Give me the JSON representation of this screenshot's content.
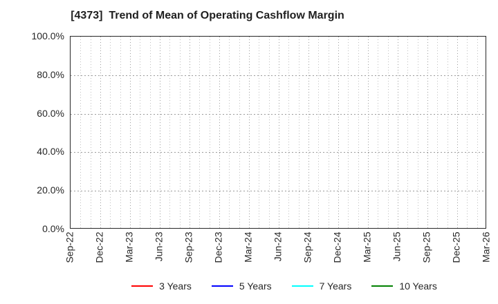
{
  "chart_data": {
    "type": "line",
    "title": "[4373]  Trend of Mean of Operating Cashflow Margin",
    "xlabel": "",
    "ylabel": "",
    "ylim": [
      0,
      100
    ],
    "y_unit": "%",
    "grid": true,
    "plot_is_empty": true,
    "x_tick_labels": [
      "Sep-22",
      "Dec-22",
      "Mar-23",
      "Jun-23",
      "Sep-23",
      "Dec-23",
      "Mar-24",
      "Jun-24",
      "Sep-24",
      "Dec-24",
      "Mar-25",
      "Jun-25",
      "Sep-25",
      "Dec-25",
      "Mar-26"
    ],
    "x_minor_divisions": 42,
    "x_ticks_per_minor": 3,
    "y_tick_values": [
      0,
      20,
      40,
      60,
      80,
      100
    ],
    "y_tick_labels": [
      "0.0%",
      "20.0%",
      "40.0%",
      "60.0%",
      "80.0%",
      "100.0%"
    ],
    "legend_position": "bottom",
    "series": [
      {
        "name": "3 Years",
        "color": "#ff0000",
        "values": []
      },
      {
        "name": "5 Years",
        "color": "#0000ff",
        "values": []
      },
      {
        "name": "7 Years",
        "color": "#00ffff",
        "values": []
      },
      {
        "name": "10 Years",
        "color": "#008000",
        "values": []
      }
    ]
  }
}
